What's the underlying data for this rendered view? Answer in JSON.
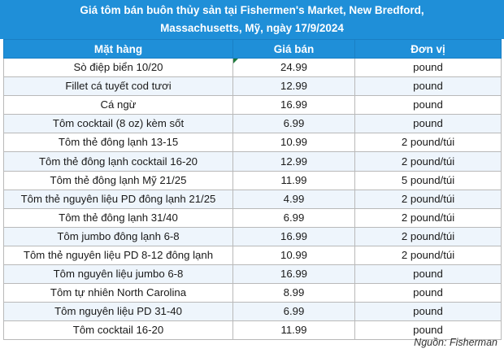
{
  "title": {
    "line1": "Giá tôm bán buôn thủy sản tại Fishermen's Market, New Bredford,",
    "line2": "Massachusetts, Mỹ, ngày 17/9/2024"
  },
  "table": {
    "headers": [
      "Mặt hàng",
      "Giá bán",
      "Đơn vị"
    ],
    "rows": [
      [
        "Sò điệp biển 10/20",
        "24.99",
        "pound"
      ],
      [
        "Fillet cá tuyết cod tươi",
        "12.99",
        "pound"
      ],
      [
        "Cá ngừ",
        "16.99",
        "pound"
      ],
      [
        "Tôm cocktail (8 oz) kèm sốt",
        "6.99",
        "pound"
      ],
      [
        "Tôm thẻ đông lạnh 13-15",
        "10.99",
        "2 pound/túi"
      ],
      [
        "Tôm thẻ đông lạnh cocktail 16-20",
        "12.99",
        "2 pound/túi"
      ],
      [
        "Tôm thẻ đông lạnh Mỹ 21/25",
        "11.99",
        "5 pound/túi"
      ],
      [
        "Tôm thẻ nguyên liệu PD đông lạnh 21/25",
        "4.99",
        "2 pound/túi"
      ],
      [
        "Tôm thẻ đông lạnh 31/40",
        "6.99",
        "2 pound/túi"
      ],
      [
        "Tôm jumbo đông lạnh 6-8",
        "16.99",
        "2 pound/túi"
      ],
      [
        "Tôm thẻ nguyên liệu PD 8-12 đông lạnh",
        "10.99",
        "2 pound/túi"
      ],
      [
        "Tôm nguyên liệu jumbo 6-8",
        "16.99",
        "pound"
      ],
      [
        "Tôm tự nhiên North Carolina",
        "8.99",
        "pound"
      ],
      [
        "Tôm nguyên liệu PD 31-40",
        "6.99",
        "pound"
      ],
      [
        "Tôm cocktail 16-20",
        "11.99",
        "pound"
      ]
    ]
  },
  "source": "Nguồn: Fisherman",
  "colors": {
    "header_bg": "#1f8fd8",
    "header_text": "#ffffff",
    "row_alt_bg": "#eef5fc"
  }
}
